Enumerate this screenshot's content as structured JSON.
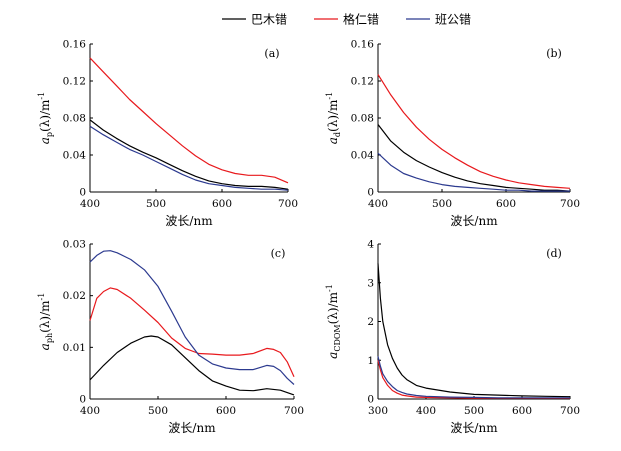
{
  "legend": [
    {
      "name": "巴木错",
      "color": "#000000"
    },
    {
      "name": "格仁错",
      "color": "#e8191d"
    },
    {
      "name": "班公错",
      "color": "#2c3a8f"
    }
  ],
  "chart_data": [
    {
      "id": "a",
      "type": "line",
      "panel_label": "(a)",
      "xlabel": "波长/nm",
      "ylabel_main": "a",
      "ylabel_sub": "p",
      "ylabel_rest": "(λ)/m",
      "ylabel_sup": "-1",
      "xlim": [
        400,
        700
      ],
      "ylim": [
        0,
        0.16
      ],
      "xticks": [
        400,
        500,
        600,
        700
      ],
      "yticks": [
        0,
        0.04,
        0.08,
        0.12,
        0.16
      ],
      "ytick_labels": [
        "0",
        "0.04",
        "0.08",
        "0.12",
        "0.16"
      ],
      "grid": false,
      "series": [
        {
          "name": "巴木错",
          "color": "#000000",
          "x": [
            400,
            420,
            440,
            460,
            480,
            500,
            520,
            540,
            560,
            580,
            600,
            620,
            640,
            660,
            680,
            700
          ],
          "y": [
            0.078,
            0.067,
            0.058,
            0.05,
            0.043,
            0.037,
            0.03,
            0.023,
            0.017,
            0.012,
            0.009,
            0.007,
            0.006,
            0.006,
            0.005,
            0.003
          ]
        },
        {
          "name": "格仁错",
          "color": "#e8191d",
          "x": [
            400,
            420,
            440,
            460,
            480,
            500,
            520,
            540,
            560,
            580,
            600,
            620,
            640,
            660,
            680,
            700
          ],
          "y": [
            0.145,
            0.13,
            0.115,
            0.1,
            0.087,
            0.074,
            0.062,
            0.05,
            0.039,
            0.03,
            0.024,
            0.02,
            0.018,
            0.018,
            0.016,
            0.01
          ]
        },
        {
          "name": "班公错",
          "color": "#2c3a8f",
          "x": [
            400,
            420,
            440,
            460,
            480,
            500,
            520,
            540,
            560,
            580,
            600,
            620,
            640,
            660,
            680,
            700
          ],
          "y": [
            0.071,
            0.062,
            0.054,
            0.046,
            0.04,
            0.033,
            0.026,
            0.019,
            0.013,
            0.009,
            0.007,
            0.005,
            0.004,
            0.003,
            0.003,
            0.002
          ]
        }
      ]
    },
    {
      "id": "b",
      "type": "line",
      "panel_label": "(b)",
      "xlabel": "波长/nm",
      "ylabel_main": "a",
      "ylabel_sub": "d",
      "ylabel_rest": "(λ)/m",
      "ylabel_sup": "-1",
      "xlim": [
        400,
        700
      ],
      "ylim": [
        0,
        0.16
      ],
      "xticks": [
        400,
        500,
        600,
        700
      ],
      "yticks": [
        0,
        0.04,
        0.08,
        0.12,
        0.16
      ],
      "ytick_labels": [
        "0",
        "0.04",
        "0.08",
        "0.12",
        "0.16"
      ],
      "grid": false,
      "series": [
        {
          "name": "巴木错",
          "color": "#000000",
          "x": [
            400,
            420,
            440,
            460,
            480,
            500,
            520,
            540,
            560,
            580,
            600,
            620,
            640,
            660,
            680,
            700
          ],
          "y": [
            0.073,
            0.055,
            0.043,
            0.034,
            0.027,
            0.021,
            0.016,
            0.012,
            0.009,
            0.007,
            0.005,
            0.004,
            0.003,
            0.002,
            0.002,
            0.001
          ]
        },
        {
          "name": "格仁错",
          "color": "#e8191d",
          "x": [
            400,
            420,
            440,
            460,
            480,
            500,
            520,
            540,
            560,
            580,
            600,
            620,
            640,
            660,
            680,
            700
          ],
          "y": [
            0.127,
            0.105,
            0.086,
            0.07,
            0.057,
            0.046,
            0.037,
            0.029,
            0.022,
            0.017,
            0.013,
            0.01,
            0.008,
            0.006,
            0.005,
            0.004
          ]
        },
        {
          "name": "班公错",
          "color": "#2c3a8f",
          "x": [
            400,
            420,
            440,
            460,
            480,
            500,
            520,
            540,
            560,
            580,
            600,
            620,
            640,
            660,
            680,
            700
          ],
          "y": [
            0.042,
            0.029,
            0.02,
            0.015,
            0.011,
            0.008,
            0.006,
            0.005,
            0.004,
            0.003,
            0.002,
            0.002,
            0.001,
            0.001,
            0.001,
            0.001
          ]
        }
      ]
    },
    {
      "id": "c",
      "type": "line",
      "panel_label": "(c)",
      "xlabel": "波长/nm",
      "ylabel_main": "a",
      "ylabel_sub": "ph",
      "ylabel_rest": "(λ)/m",
      "ylabel_sup": "-1",
      "xlim": [
        400,
        700
      ],
      "ylim": [
        0,
        0.03
      ],
      "xticks": [
        400,
        500,
        600,
        700
      ],
      "yticks": [
        0,
        0.01,
        0.02,
        0.03
      ],
      "ytick_labels": [
        "0",
        "0.01",
        "0.02",
        "0.03"
      ],
      "grid": false,
      "series": [
        {
          "name": "巴木错",
          "color": "#000000",
          "x": [
            400,
            420,
            440,
            460,
            480,
            490,
            500,
            520,
            540,
            560,
            580,
            600,
            620,
            640,
            660,
            680,
            700
          ],
          "y": [
            0.0037,
            0.0065,
            0.009,
            0.0108,
            0.012,
            0.0122,
            0.012,
            0.0105,
            0.008,
            0.0055,
            0.0035,
            0.0025,
            0.0017,
            0.0016,
            0.002,
            0.0017,
            0.0008
          ]
        },
        {
          "name": "格仁错",
          "color": "#e8191d",
          "x": [
            400,
            410,
            420,
            430,
            440,
            460,
            480,
            500,
            520,
            540,
            560,
            580,
            600,
            620,
            640,
            660,
            670,
            680,
            690,
            700
          ],
          "y": [
            0.0152,
            0.0195,
            0.0208,
            0.0215,
            0.0212,
            0.0195,
            0.0172,
            0.0148,
            0.0118,
            0.0098,
            0.0088,
            0.0087,
            0.0085,
            0.0085,
            0.0088,
            0.0098,
            0.0096,
            0.009,
            0.0072,
            0.0043
          ]
        },
        {
          "name": "班公错",
          "color": "#2c3a8f",
          "x": [
            400,
            410,
            420,
            430,
            440,
            460,
            480,
            500,
            520,
            540,
            560,
            580,
            600,
            620,
            640,
            660,
            670,
            680,
            690,
            700
          ],
          "y": [
            0.0265,
            0.0278,
            0.0286,
            0.0287,
            0.0283,
            0.027,
            0.025,
            0.0218,
            0.017,
            0.012,
            0.0085,
            0.0068,
            0.006,
            0.0057,
            0.0057,
            0.0065,
            0.0063,
            0.0055,
            0.004,
            0.0028
          ]
        }
      ]
    },
    {
      "id": "d",
      "type": "line",
      "panel_label": "(d)",
      "xlabel": "波长/nm",
      "ylabel_main": "a",
      "ylabel_sub": "CDOM",
      "ylabel_rest": "(λ)/m",
      "ylabel_sup": "-1",
      "xlim": [
        300,
        700
      ],
      "ylim": [
        0,
        4
      ],
      "xticks": [
        300,
        400,
        500,
        600,
        700
      ],
      "yticks": [
        0,
        1,
        2,
        3,
        4
      ],
      "ytick_labels": [
        "0",
        "1",
        "2",
        "3",
        "4"
      ],
      "grid": false,
      "series": [
        {
          "name": "巴木错",
          "color": "#000000",
          "x": [
            300,
            305,
            310,
            320,
            330,
            340,
            350,
            360,
            380,
            400,
            450,
            500,
            550,
            600,
            650,
            700
          ],
          "y": [
            3.5,
            2.6,
            2.0,
            1.4,
            1.05,
            0.8,
            0.62,
            0.5,
            0.35,
            0.28,
            0.18,
            0.12,
            0.1,
            0.08,
            0.07,
            0.06
          ]
        },
        {
          "name": "格仁错",
          "color": "#e8191d",
          "x": [
            300,
            305,
            310,
            320,
            330,
            340,
            350,
            360,
            380,
            400,
            450,
            500,
            550,
            600,
            650,
            700
          ],
          "y": [
            1.0,
            0.75,
            0.55,
            0.35,
            0.22,
            0.15,
            0.1,
            0.08,
            0.05,
            0.04,
            0.03,
            0.02,
            0.02,
            0.02,
            0.02,
            0.02
          ]
        },
        {
          "name": "班公错",
          "color": "#2c3a8f",
          "x": [
            300,
            305,
            310,
            320,
            330,
            340,
            350,
            360,
            380,
            400,
            450,
            500,
            550,
            600,
            650,
            700
          ],
          "y": [
            1.1,
            0.85,
            0.65,
            0.45,
            0.32,
            0.22,
            0.17,
            0.13,
            0.09,
            0.07,
            0.05,
            0.04,
            0.03,
            0.03,
            0.03,
            0.03
          ]
        }
      ]
    }
  ]
}
